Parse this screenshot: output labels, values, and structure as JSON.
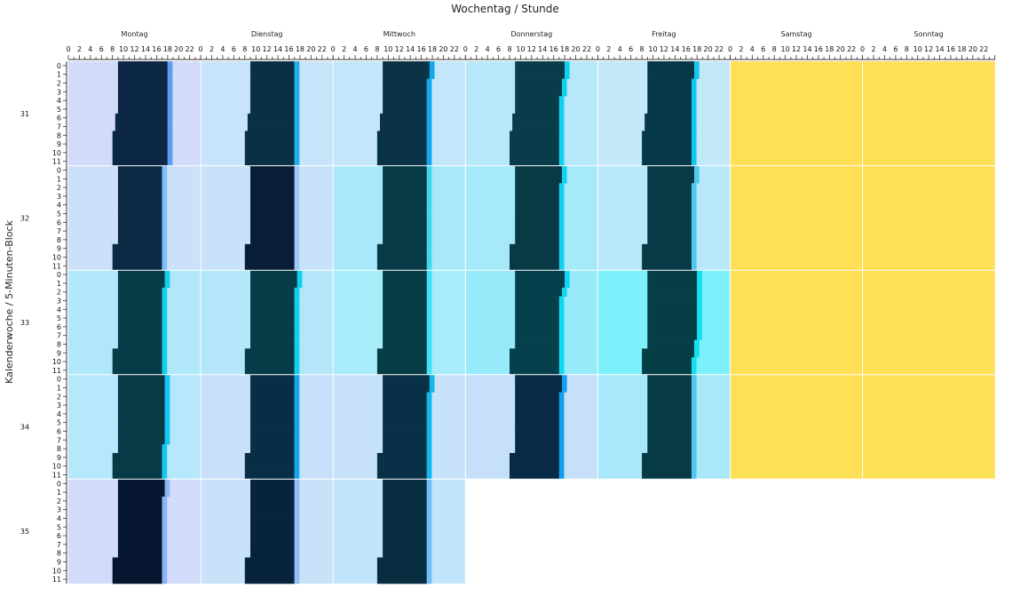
{
  "chart_data": {
    "type": "heatmap",
    "title": "Wochentag / Stunde",
    "ylabel": "Kalenderwoche / 5-Minuten-Block",
    "x_tick_labels": [
      "0",
      "2",
      "4",
      "6",
      "8",
      "10",
      "12",
      "14",
      "16",
      "18",
      "20",
      "22"
    ],
    "x_range": [
      0,
      24
    ],
    "days": [
      "Montag",
      "Dienstag",
      "Mittwoch",
      "Donnerstag",
      "Freitag",
      "Samstag",
      "Sonntag"
    ],
    "weeks": [
      "31",
      "32",
      "33",
      "34",
      "35"
    ],
    "blocks": [
      "0",
      "1",
      "2",
      "3",
      "4",
      "5",
      "6",
      "7",
      "8",
      "9",
      "10",
      "11"
    ],
    "grid": true,
    "legend": "none",
    "missing_color": "#ffdf55",
    "cells": [
      [
        {
          "bg": "#d2dcfa",
          "dark": "#0c2646",
          "start": [
            9,
            9,
            9,
            9,
            9,
            9,
            8.5,
            8.5,
            8,
            8,
            8,
            8
          ],
          "end": [
            18,
            18,
            18,
            18,
            18,
            18,
            18,
            18,
            18,
            18,
            18,
            18
          ],
          "edge": "#5aa0f0"
        },
        {
          "bg": "#c8e4fa",
          "dark": "#0a3046",
          "start": [
            9,
            9,
            9,
            9,
            9,
            9,
            8.5,
            8.5,
            8,
            8,
            8,
            8
          ],
          "end": [
            17,
            17,
            17,
            17,
            17,
            17,
            17,
            17,
            17,
            17,
            17,
            17
          ],
          "edge": "#20b0f0"
        },
        {
          "bg": "#c4e6fa",
          "dark": "#0a3446",
          "start": [
            9,
            9,
            9,
            9,
            9,
            9,
            8.5,
            8.5,
            8,
            8,
            8,
            8
          ],
          "end": [
            17.5,
            17.5,
            17,
            17,
            17,
            17,
            17,
            17,
            17,
            17,
            17,
            17
          ],
          "edge": "#10a8f0"
        },
        {
          "bg": "#b6e8fa",
          "dark": "#083c4a",
          "start": [
            9,
            9,
            9,
            9,
            9,
            9,
            8.5,
            8.5,
            8,
            8,
            8,
            8
          ],
          "end": [
            18,
            18,
            17.5,
            17.5,
            17,
            17,
            17,
            17,
            17,
            17,
            17,
            17
          ],
          "edge": "#10d0f0"
        },
        {
          "bg": "#c2e8fa",
          "dark": "#06384a",
          "start": [
            9,
            9,
            9,
            9,
            9,
            9,
            8.5,
            8.5,
            8,
            8,
            8,
            8
          ],
          "end": [
            17.5,
            17.5,
            17,
            17,
            17,
            17,
            17,
            17,
            17,
            17,
            17,
            17
          ],
          "edge": "#10c8f0"
        },
        null,
        null
      ],
      [
        {
          "bg": "#cce0fa",
          "dark": "#0c2a44",
          "start": [
            9,
            9,
            9,
            9,
            9,
            9,
            9,
            9,
            9,
            8,
            8,
            8
          ],
          "end": [
            17,
            17,
            17,
            17,
            17,
            17,
            17,
            17,
            17,
            17,
            17,
            17
          ],
          "edge": "#80c0f8"
        },
        {
          "bg": "#c8e2fa",
          "dark": "#081e36",
          "start": [
            9,
            9,
            9,
            9,
            9,
            9,
            9,
            9,
            9,
            8,
            8,
            8
          ],
          "end": [
            17,
            17,
            17,
            17,
            17,
            17,
            17,
            17,
            17,
            17,
            17,
            17
          ],
          "edge": "#a0c8f8"
        },
        {
          "bg": "#a8e8fa",
          "dark": "#063a46",
          "start": [
            9,
            9,
            9,
            9,
            9,
            9,
            9,
            9,
            9,
            8,
            8,
            8
          ],
          "end": [
            17,
            17,
            17,
            17,
            17,
            17,
            17,
            17,
            17,
            17,
            17,
            17
          ],
          "edge": "#40d8f0"
        },
        {
          "bg": "#a6eafa",
          "dark": "#083a46",
          "start": [
            9,
            9,
            9,
            9,
            9,
            9,
            9,
            9,
            9,
            8,
            8,
            8
          ],
          "end": [
            17.5,
            17.5,
            17,
            17,
            17,
            17,
            17,
            17,
            17,
            17,
            17,
            17
          ],
          "edge": "#10d0f0"
        },
        {
          "bg": "#b8e8fa",
          "dark": "#073a46",
          "start": [
            9,
            9,
            9,
            9,
            9,
            9,
            9,
            9,
            9,
            8,
            8,
            8
          ],
          "end": [
            17.5,
            17.5,
            17,
            17,
            17,
            17,
            17,
            17,
            17,
            17,
            17,
            17
          ],
          "edge": "#50c8f0"
        },
        null,
        null
      ],
      [
        {
          "bg": "#b0e8fa",
          "dark": "#063c48",
          "start": [
            9,
            9,
            9,
            9,
            9,
            9,
            9,
            9,
            9,
            8,
            8,
            8
          ],
          "end": [
            17.5,
            17.5,
            17,
            17,
            17,
            17,
            17,
            17,
            17,
            17,
            17,
            17
          ],
          "edge": "#10d0f0"
        },
        {
          "bg": "#b4e6fa",
          "dark": "#063c48",
          "start": [
            9,
            9,
            9,
            9,
            9,
            9,
            9,
            9,
            9,
            8,
            8,
            8
          ],
          "end": [
            17.5,
            17.5,
            17,
            17,
            17,
            17,
            17,
            17,
            17,
            17,
            17,
            17
          ],
          "edge": "#10d0f0"
        },
        {
          "bg": "#a8ecfa",
          "dark": "#063c46",
          "start": [
            9,
            9,
            9,
            9,
            9,
            9,
            9,
            9,
            9,
            8,
            8,
            8
          ],
          "end": [
            17,
            17,
            17,
            17,
            17,
            17,
            17,
            17,
            17,
            17,
            17,
            17
          ],
          "edge": "#40e0f8"
        },
        {
          "bg": "#96eafa",
          "dark": "#06404c",
          "start": [
            9,
            9,
            9,
            9,
            9,
            9,
            9,
            9,
            9,
            8,
            8,
            8
          ],
          "end": [
            18,
            18,
            17.5,
            17,
            17,
            17,
            17,
            17,
            17,
            17,
            17,
            17
          ],
          "edge": "#10d8f0"
        },
        {
          "bg": "#7cf0fa",
          "dark": "#063e48",
          "start": [
            9,
            9,
            9,
            9,
            9,
            9,
            9,
            9,
            9,
            8,
            8,
            8
          ],
          "end": [
            18,
            18,
            18,
            18,
            18,
            18,
            18,
            18,
            17.5,
            17.5,
            17,
            17
          ],
          "edge": "#10e0f0"
        },
        null,
        null
      ],
      [
        {
          "bg": "#b4e8fa",
          "dark": "#063a46",
          "start": [
            9,
            9,
            9,
            9,
            9,
            9,
            9,
            9,
            9,
            8,
            8,
            8
          ],
          "end": [
            17.5,
            17.5,
            17.5,
            17.5,
            17.5,
            17.5,
            17.5,
            17.5,
            17,
            17,
            17,
            17
          ],
          "edge": "#10c8f0"
        },
        {
          "bg": "#c8e0fa",
          "dark": "#082e46",
          "start": [
            9,
            9,
            9,
            9,
            9,
            9,
            9,
            9,
            9,
            8,
            8,
            8
          ],
          "end": [
            17,
            17,
            17,
            17,
            17,
            17,
            17,
            17,
            17,
            17,
            17,
            17
          ],
          "edge": "#10a8f0"
        },
        {
          "bg": "#c8e2fa",
          "dark": "#083046",
          "start": [
            9,
            9,
            9,
            9,
            9,
            9,
            9,
            9,
            9,
            8,
            8,
            8
          ],
          "end": [
            17.5,
            17.5,
            17,
            17,
            17,
            17,
            17,
            17,
            17,
            17,
            17,
            17
          ],
          "edge": "#10b8f0"
        },
        {
          "bg": "#c6e0fa",
          "dark": "#082a46",
          "start": [
            9,
            9,
            9,
            9,
            9,
            9,
            9,
            9,
            9,
            8,
            8,
            8
          ],
          "end": [
            17.5,
            17.5,
            17,
            17,
            17,
            17,
            17,
            17,
            17,
            17,
            17,
            17
          ],
          "edge": "#10a0f0"
        },
        {
          "bg": "#a8e8fa",
          "dark": "#063a44",
          "start": [
            9,
            9,
            9,
            9,
            9,
            9,
            9,
            9,
            9,
            8,
            8,
            8
          ],
          "end": [
            17,
            17,
            17,
            17,
            17,
            17,
            17,
            17,
            17,
            17,
            17,
            17
          ],
          "edge": "#50c8f0"
        },
        null,
        null
      ],
      [
        {
          "bg": "#d2dcfa",
          "dark": "#071630",
          "start": [
            9,
            9,
            9,
            9,
            9,
            9,
            9,
            9,
            9,
            8,
            8,
            8
          ],
          "end": [
            17.5,
            17.5,
            17,
            17,
            17,
            17,
            17,
            17,
            17,
            17,
            17,
            17
          ],
          "edge": "#8cb4f8"
        },
        {
          "bg": "#c8e2fa",
          "dark": "#08243c",
          "start": [
            9,
            9,
            9,
            9,
            9,
            9,
            9,
            9,
            9,
            8,
            8,
            8
          ],
          "end": [
            17,
            17,
            17,
            17,
            17,
            17,
            17,
            17,
            17,
            17,
            17,
            17
          ],
          "edge": "#90c0f8"
        },
        {
          "bg": "#c2e4fa",
          "dark": "#082c40",
          "start": [
            9,
            9,
            9,
            9,
            9,
            9,
            9,
            9,
            9,
            8,
            8,
            8
          ],
          "end": [
            17,
            17,
            17,
            17,
            17,
            17,
            17,
            17,
            17,
            17,
            17,
            17
          ],
          "edge": "#70c0f8"
        },
        null,
        null,
        null,
        null
      ]
    ]
  }
}
